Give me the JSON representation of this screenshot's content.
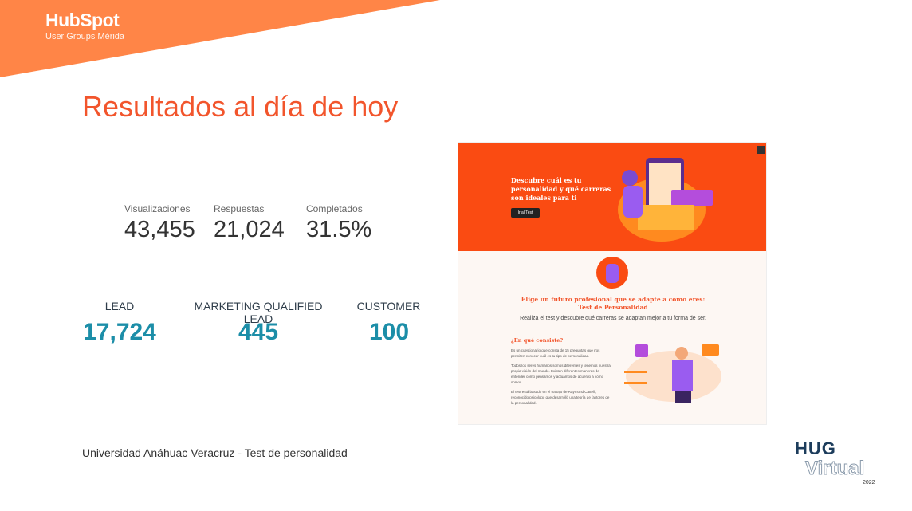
{
  "header": {
    "logo_text": "HubSpot",
    "logo_subtitle": "User Groups Mérida",
    "accent": "#ff8547"
  },
  "title": "Resultados al día de hoy",
  "metrics": [
    {
      "label": "Visualizaciones",
      "value": "43,455"
    },
    {
      "label": "Respuestas",
      "value": "21,024"
    },
    {
      "label": "Completados",
      "value": "31.5%"
    }
  ],
  "lifecycle": [
    {
      "label": "LEAD",
      "value": "17,724"
    },
    {
      "label": "MARKETING QUALIFIED LEAD",
      "value": "445"
    },
    {
      "label": "CUSTOMER",
      "value": "100"
    }
  ],
  "screenshot": {
    "hero_text": "Descubre cuál es tu personalidad y qué carreras son ideales para ti",
    "hero_button": "Ir al Test",
    "heading": "Elige un futuro profesional que se adapte a cómo eres:",
    "heading2": "Test de Personalidad",
    "subtitle": "Realiza el test y descubre qué carreras se adaptan mejor a tu forma de ser.",
    "section_title": "¿En qué consiste?",
    "paragraphs": [
      "Es un cuestionario que consta de 15 preguntas que nos permiten conocer cuál es tu tipo de personalidad.",
      "Todos los seres humanos somos diferentes y tenemos nuestra propia visión del mundo. Existen diferentes maneras de entender cómo pensamos y actuamos de acuerdo a cómo somos.",
      "El test está basado en el trabajo de Raymond Cattell, reconocido psicólogo que desarrolló una teoría de factores de la personalidad."
    ]
  },
  "footer": "Universidad Anáhuac Veracruz - Test de personalidad",
  "badge": {
    "line1": "HUG",
    "line2": "Virtual",
    "year": "2022"
  }
}
